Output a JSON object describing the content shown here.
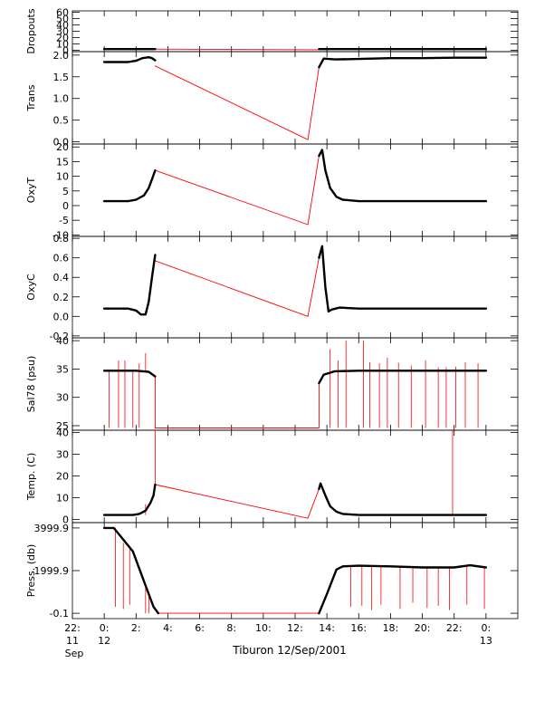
{
  "caption": "Tiburon 12/Sep/2001",
  "colors": {
    "ink": "#000000",
    "accent": "#ff0000",
    "background": "#ffffff"
  },
  "xaxis": {
    "range_hours": [
      -2,
      26
    ],
    "ticks": [
      {
        "value": -2,
        "label": "22:",
        "sub": [
          "11",
          "Sep"
        ]
      },
      {
        "value": 0,
        "label": "0:",
        "sub": [
          "12"
        ]
      },
      {
        "value": 2,
        "label": "2:",
        "sub": []
      },
      {
        "value": 4,
        "label": "4:",
        "sub": []
      },
      {
        "value": 6,
        "label": "6:",
        "sub": []
      },
      {
        "value": 8,
        "label": "8:",
        "sub": []
      },
      {
        "value": 10,
        "label": "10:",
        "sub": []
      },
      {
        "value": 12,
        "label": "12:",
        "sub": []
      },
      {
        "value": 14,
        "label": "14:",
        "sub": []
      },
      {
        "value": 16,
        "label": "16:",
        "sub": []
      },
      {
        "value": 18,
        "label": "18:",
        "sub": []
      },
      {
        "value": 20,
        "label": "20:",
        "sub": []
      },
      {
        "value": 22,
        "label": "22:",
        "sub": []
      },
      {
        "value": 24,
        "label": "0:",
        "sub": [
          "13"
        ]
      }
    ]
  },
  "chart_data": [
    {
      "type": "line",
      "ylabel": "Dropouts",
      "ylim": [
        -2,
        62
      ],
      "yticks": [
        0,
        10,
        20,
        30,
        40,
        50,
        60
      ],
      "yticklabels": [
        "0",
        "10",
        "20",
        "30",
        "40",
        "50",
        "60"
      ],
      "series": [
        {
          "style": "black",
          "x": [
            0.0,
            3.2
          ],
          "y": [
            2,
            2
          ]
        },
        {
          "style": "black",
          "x": [
            13.5,
            24.0
          ],
          "y": [
            2,
            2
          ]
        },
        {
          "style": "red",
          "x": [
            3.2,
            13.5
          ],
          "y": [
            2,
            1
          ]
        }
      ]
    },
    {
      "type": "line",
      "ylabel": "Trans",
      "ylim": [
        -0.05,
        2.08
      ],
      "yticks": [
        0.0,
        0.5,
        1.0,
        1.5,
        2.0
      ],
      "yticklabels": [
        "0.0",
        "0.5",
        "1.0",
        "1.5",
        "2.0"
      ],
      "series": [
        {
          "style": "black",
          "x": [
            0.0,
            1.5,
            2.0,
            2.4,
            2.8,
            3.0,
            3.2
          ],
          "y": [
            1.84,
            1.84,
            1.87,
            1.93,
            1.95,
            1.93,
            1.88
          ]
        },
        {
          "style": "black",
          "x": [
            13.5,
            13.8,
            14.5,
            16.0,
            18.0,
            20.0,
            22.0,
            24.0
          ],
          "y": [
            1.72,
            1.92,
            1.9,
            1.91,
            1.93,
            1.93,
            1.94,
            1.94
          ]
        },
        {
          "style": "red",
          "x": [
            3.2,
            12.8,
            13.5
          ],
          "y": [
            1.75,
            0.05,
            1.72
          ]
        }
      ]
    },
    {
      "type": "line",
      "ylabel": "OxyT",
      "ylim": [
        -10.5,
        21
      ],
      "yticks": [
        -10,
        -5,
        0,
        5,
        10,
        15,
        20
      ],
      "yticklabels": [
        "-10",
        "-5",
        "0",
        "5",
        "10",
        "15",
        "20"
      ],
      "series": [
        {
          "style": "black",
          "x": [
            0.0,
            1.5,
            2.0,
            2.5,
            2.8,
            3.0,
            3.2
          ],
          "y": [
            1.5,
            1.5,
            2.0,
            3.5,
            6.0,
            9.0,
            12.0
          ]
        },
        {
          "style": "black",
          "x": [
            13.5,
            13.7,
            13.9,
            14.2,
            14.6,
            15.0,
            16.0,
            24.0
          ],
          "y": [
            17.0,
            19.0,
            12.0,
            6.0,
            3.0,
            2.0,
            1.5,
            1.5
          ]
        },
        {
          "style": "red",
          "x": [
            3.2,
            12.8,
            13.5,
            13.7
          ],
          "y": [
            12.0,
            -6.5,
            17.0,
            19.0
          ]
        }
      ]
    },
    {
      "type": "line",
      "ylabel": "OxyC",
      "ylim": [
        -0.22,
        0.82
      ],
      "yticks": [
        -0.2,
        0.0,
        0.2,
        0.4,
        0.6,
        0.8
      ],
      "yticklabels": [
        "-0.2",
        "0.0",
        "0.2",
        "0.4",
        "0.6",
        "0.8"
      ],
      "series": [
        {
          "style": "black",
          "x": [
            0.0,
            1.5,
            2.0,
            2.3,
            2.6,
            2.8,
            3.0,
            3.2
          ],
          "y": [
            0.08,
            0.08,
            0.06,
            0.02,
            0.02,
            0.15,
            0.4,
            0.63
          ]
        },
        {
          "style": "black",
          "x": [
            13.5,
            13.7,
            13.9,
            14.1,
            14.3,
            14.8,
            16.0,
            24.0
          ],
          "y": [
            0.6,
            0.72,
            0.3,
            0.05,
            0.07,
            0.09,
            0.08,
            0.08
          ]
        },
        {
          "style": "red",
          "x": [
            3.2,
            12.8,
            13.5,
            13.7
          ],
          "y": [
            0.57,
            0.0,
            0.6,
            0.72
          ]
        }
      ]
    },
    {
      "type": "line",
      "ylabel": "Sal78 (psu)",
      "ylim": [
        24.2,
        40.5
      ],
      "yticks": [
        25,
        30,
        35,
        40
      ],
      "yticklabels": [
        "25",
        "30",
        "35",
        "40"
      ],
      "series": [
        {
          "style": "black",
          "x": [
            0.0,
            2.0,
            2.8,
            3.2
          ],
          "y": [
            34.7,
            34.7,
            34.5,
            33.7
          ]
        },
        {
          "style": "black",
          "x": [
            13.5,
            13.8,
            14.5,
            16.0,
            24.0
          ],
          "y": [
            32.5,
            34.0,
            34.6,
            34.7,
            34.7
          ]
        },
        {
          "style": "red",
          "x": [
            3.2,
            3.2,
            13.5,
            13.5
          ],
          "y": [
            33.7,
            24.6,
            24.6,
            32.5
          ]
        }
      ],
      "spikes_red": [
        {
          "x": 0.3,
          "y0": 24.6,
          "y1": 34.8
        },
        {
          "x": 0.9,
          "y0": 24.6,
          "y1": 36.5
        },
        {
          "x": 1.3,
          "y0": 24.6,
          "y1": 36.5
        },
        {
          "x": 1.8,
          "y0": 24.6,
          "y1": 34.9
        },
        {
          "x": 2.2,
          "y0": 24.6,
          "y1": 36.0
        },
        {
          "x": 2.6,
          "y0": 34.7,
          "y1": 37.8
        },
        {
          "x": 14.2,
          "y0": 24.6,
          "y1": 38.5
        },
        {
          "x": 14.7,
          "y0": 24.6,
          "y1": 36.5
        },
        {
          "x": 15.2,
          "y0": 24.6,
          "y1": 40.0
        },
        {
          "x": 16.3,
          "y0": 24.6,
          "y1": 40.0
        },
        {
          "x": 16.7,
          "y0": 24.6,
          "y1": 36.2
        },
        {
          "x": 17.3,
          "y0": 24.6,
          "y1": 36.0
        },
        {
          "x": 17.8,
          "y0": 24.6,
          "y1": 37.0
        },
        {
          "x": 18.5,
          "y0": 24.6,
          "y1": 36.1
        },
        {
          "x": 19.3,
          "y0": 24.6,
          "y1": 35.6
        },
        {
          "x": 20.2,
          "y0": 24.6,
          "y1": 36.5
        },
        {
          "x": 21.0,
          "y0": 24.6,
          "y1": 35.3
        },
        {
          "x": 21.5,
          "y0": 24.6,
          "y1": 35.3
        },
        {
          "x": 22.1,
          "y0": 24.6,
          "y1": 35.4
        },
        {
          "x": 22.7,
          "y0": 24.6,
          "y1": 36.2
        },
        {
          "x": 23.5,
          "y0": 24.6,
          "y1": 36.0
        }
      ]
    },
    {
      "type": "line",
      "ylabel": "Temp. (C)",
      "ylim": [
        -1.5,
        41
      ],
      "yticks": [
        0,
        10,
        20,
        30,
        40
      ],
      "yticklabels": [
        "0",
        "10",
        "20",
        "30",
        "40"
      ],
      "series": [
        {
          "style": "black",
          "x": [
            0.0,
            1.8,
            2.2,
            2.6,
            2.9,
            3.1,
            3.2
          ],
          "y": [
            2.0,
            2.0,
            2.5,
            4.0,
            7.5,
            11.0,
            16.0
          ]
        },
        {
          "style": "black",
          "x": [
            13.5,
            13.6,
            13.9,
            14.2,
            14.6,
            15.0,
            16.0,
            24.0
          ],
          "y": [
            14.0,
            16.5,
            11.0,
            6.0,
            3.5,
            2.5,
            2.0,
            2.0
          ]
        },
        {
          "style": "red",
          "x": [
            3.2,
            12.8,
            13.5,
            13.6
          ],
          "y": [
            16.0,
            0.5,
            14.0,
            16.5
          ]
        }
      ],
      "spikes_red": [
        {
          "x": 3.2,
          "y0": 16.0,
          "y1": 41.0
        },
        {
          "x": 2.6,
          "y0": 2.0,
          "y1": 7.0
        },
        {
          "x": 21.9,
          "y0": 2.0,
          "y1": 41.0
        }
      ]
    },
    {
      "type": "line",
      "ylabel": "Press. (db)",
      "ylim": [
        -250,
        4250
      ],
      "yticks": [
        -0.1,
        1999.9,
        3999.9
      ],
      "yticklabels": [
        "-0.1",
        "1999.9",
        "3999.9"
      ],
      "series": [
        {
          "style": "black",
          "x": [
            0.0,
            0.6,
            1.8,
            2.6,
            3.1,
            3.4
          ],
          "y": [
            3999.9,
            3999.9,
            2900,
            1300,
            300,
            -0.1
          ]
        },
        {
          "style": "black",
          "x": [
            13.5,
            14.0,
            14.6,
            15.0,
            16.0,
            18.0,
            20.0,
            22.0,
            23.0,
            24.0
          ],
          "y": [
            -0.1,
            900,
            2050,
            2200,
            2230,
            2200,
            2150,
            2150,
            2250,
            2150
          ]
        },
        {
          "style": "red",
          "x": [
            3.4,
            13.5
          ],
          "y": [
            -0.1,
            -0.1
          ]
        }
      ],
      "spikes_red": [
        {
          "x": 0.7,
          "y0": 3999.9,
          "y1": 300
        },
        {
          "x": 1.2,
          "y0": 3300,
          "y1": 200
        },
        {
          "x": 1.6,
          "y0": 3000,
          "y1": 400
        },
        {
          "x": 2.6,
          "y0": 1300,
          "y1": -0.1
        },
        {
          "x": 2.8,
          "y0": 1000,
          "y1": -0.1
        },
        {
          "x": 15.5,
          "y0": 2200,
          "y1": 300
        },
        {
          "x": 16.2,
          "y0": 2200,
          "y1": 350
        },
        {
          "x": 16.8,
          "y0": 2200,
          "y1": 150
        },
        {
          "x": 17.4,
          "y0": 2200,
          "y1": 400
        },
        {
          "x": 18.6,
          "y0": 2200,
          "y1": 200
        },
        {
          "x": 19.4,
          "y0": 2200,
          "y1": 500
        },
        {
          "x": 20.3,
          "y0": 2150,
          "y1": 250
        },
        {
          "x": 21.0,
          "y0": 2150,
          "y1": 350
        },
        {
          "x": 21.7,
          "y0": 2150,
          "y1": 150
        },
        {
          "x": 22.8,
          "y0": 2200,
          "y1": 400
        },
        {
          "x": 23.9,
          "y0": 2150,
          "y1": 200
        }
      ]
    }
  ]
}
